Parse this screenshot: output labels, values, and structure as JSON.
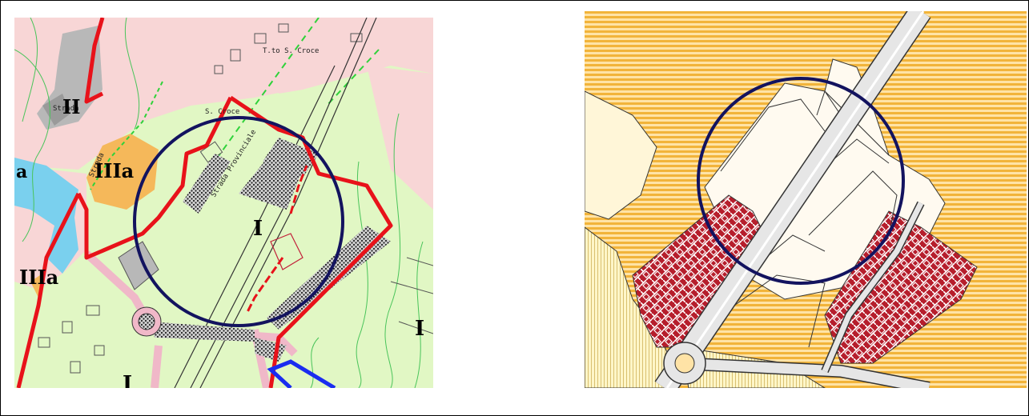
{
  "left_map": {
    "zone_labels": [
      "II",
      "IIIa",
      "a",
      "I",
      "IIIa",
      "I",
      "I"
    ],
    "street_labels": [
      "T.to S. Croce",
      "S. Croce",
      "Strada",
      "Strada",
      "Strada Provinciale"
    ],
    "colors": {
      "zone_I": "#e1f7c4",
      "zone_II": "#b8b8b8",
      "zone_III": "#f5b85a",
      "residential": "#f8d6d6",
      "water": "#7ad0ee",
      "boundary_red": "#e8121a",
      "boundary_blue": "#1a2cf0",
      "highlight_circle": "#13135f"
    }
  },
  "right_map": {
    "colors": {
      "hatch_orange": "#f2b43a",
      "hatch_light": "#ffe3a6",
      "industrial": "#b61e2c",
      "road": "#e6e6e6",
      "highlight_circle": "#13135f"
    }
  }
}
